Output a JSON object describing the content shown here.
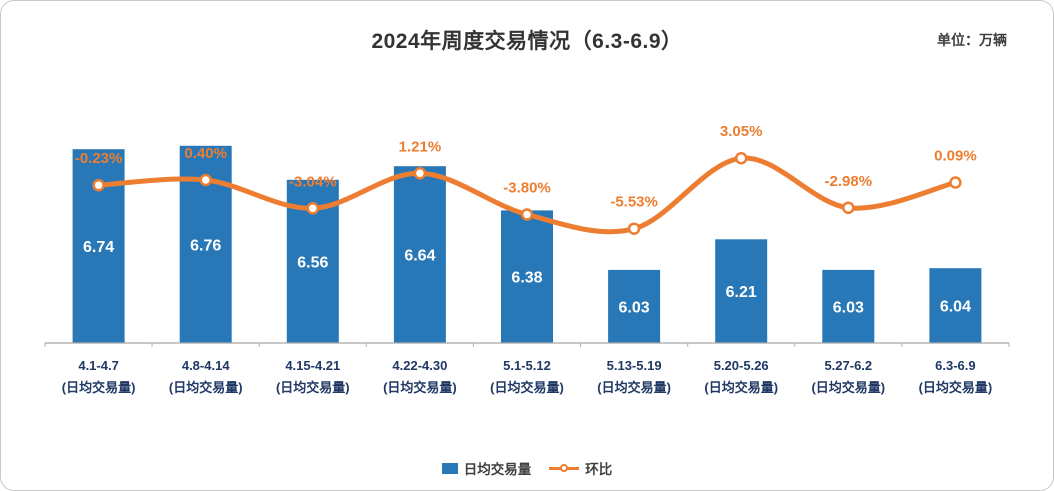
{
  "chart": {
    "title": "2024年周度交易情况（6.3-6.9）",
    "unit_label": "单位：万辆",
    "legend": [
      {
        "label": "日均交易量"
      },
      {
        "label": "环比"
      }
    ]
  },
  "chart_data": {
    "type": "bar+line combo",
    "title": "2024年周度交易情况（6.3-6.9）",
    "unit": "万辆",
    "categories": [
      "4.1-4.7",
      "4.8-4.14",
      "4.15-4.21",
      "4.22-4.30",
      "5.1-5.12",
      "5.13-5.19",
      "5.20-5.26",
      "5.27-6.2",
      "6.3-6.9"
    ],
    "category_sublabel": "(日均交易量)",
    "series": [
      {
        "name": "日均交易量",
        "type": "bar",
        "color": "#2878B8",
        "values": [
          6.74,
          6.76,
          6.56,
          6.64,
          6.38,
          6.03,
          6.21,
          6.03,
          6.04
        ],
        "labels": [
          "6.74",
          "6.76",
          "6.56",
          "6.64",
          "6.38",
          "6.03",
          "6.21",
          "6.03",
          "6.04"
        ]
      },
      {
        "name": "环比",
        "type": "line",
        "color": "#ED7D31",
        "values": [
          -0.23,
          0.4,
          -3.04,
          1.21,
          -3.8,
          -5.53,
          3.05,
          -2.98,
          0.09
        ],
        "labels": [
          "-0.23%",
          "0.40%",
          "-3.04%",
          "1.21%",
          "-3.80%",
          "-5.53%",
          "3.05%",
          "-2.98%",
          "0.09%"
        ]
      }
    ],
    "bar_axis_range": [
      5.6,
      7.0
    ],
    "line_axis_range": [
      -8,
      6
    ],
    "grid": false,
    "legend_position": "bottom"
  }
}
